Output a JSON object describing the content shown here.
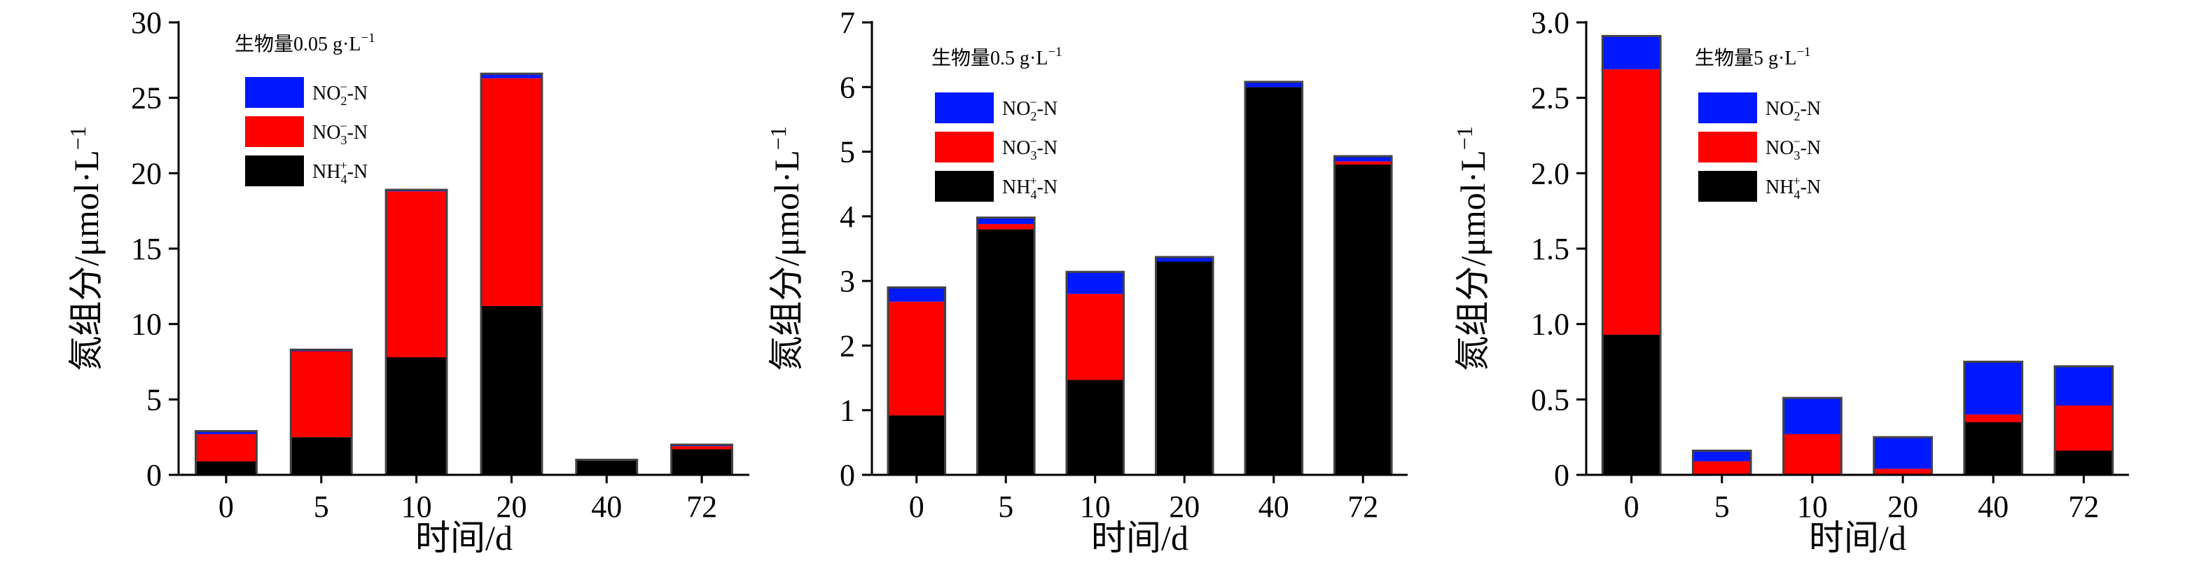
{
  "colors": {
    "NO2": "#0018ff",
    "NO3": "#ff0000",
    "NH4": "#000000"
  },
  "legend": [
    {
      "key": "NO2",
      "pre": "NO",
      "sub": "2",
      "sup": "−",
      "post": "-N"
    },
    {
      "key": "NO3",
      "pre": "NO",
      "sub": "3",
      "sup": "−",
      "post": "-N"
    },
    {
      "key": "NH4",
      "pre": "NH",
      "sub": "4",
      "sup": "+",
      "post": "-N"
    }
  ],
  "axis": {
    "xlabel": "时间/d",
    "ylabel": "氮组分/μmol·L",
    "ylabel_sup": "−1"
  },
  "chart_data": [
    {
      "type": "bar",
      "title": "生物量0.05 g·L",
      "title_sup": "−1",
      "categories": [
        "0",
        "5",
        "10",
        "20",
        "40",
        "72"
      ],
      "ylim": [
        0,
        30
      ],
      "yticks": [
        "0",
        "5",
        "10",
        "15",
        "20",
        "25",
        "30"
      ],
      "ytick_values": [
        0,
        5,
        10,
        15,
        20,
        25,
        30
      ],
      "series": [
        {
          "name": "NH4+-N",
          "key": "NH4",
          "values": [
            0.9,
            2.5,
            7.8,
            11.2,
            1.0,
            1.7
          ]
        },
        {
          "name": "NO3−-N",
          "key": "NO3",
          "values": [
            1.8,
            5.7,
            11.0,
            15.1,
            0.0,
            0.2
          ]
        },
        {
          "name": "NO2−-N",
          "key": "NO2",
          "values": [
            0.2,
            0.1,
            0.1,
            0.3,
            0.0,
            0.1
          ]
        }
      ]
    },
    {
      "type": "bar",
      "title": "生物量0.5 g·L",
      "title_sup": "−1",
      "categories": [
        "0",
        "5",
        "10",
        "20",
        "40",
        "72"
      ],
      "ylim": [
        0,
        7
      ],
      "yticks": [
        "0",
        "1",
        "2",
        "3",
        "4",
        "5",
        "6",
        "7"
      ],
      "ytick_values": [
        0,
        1,
        2,
        3,
        4,
        5,
        6,
        7
      ],
      "series": [
        {
          "name": "NH4+-N",
          "key": "NH4",
          "values": [
            0.92,
            3.8,
            1.47,
            3.3,
            6.0,
            4.8
          ]
        },
        {
          "name": "NO3−-N",
          "key": "NO3",
          "values": [
            1.76,
            0.08,
            1.33,
            0.0,
            0.0,
            0.05
          ]
        },
        {
          "name": "NO2−-N",
          "key": "NO2",
          "values": [
            0.22,
            0.1,
            0.34,
            0.07,
            0.08,
            0.08
          ]
        }
      ]
    },
    {
      "type": "bar",
      "title": "生物量5 g·L",
      "title_sup": "−1",
      "categories": [
        "0",
        "5",
        "10",
        "20",
        "40",
        "72"
      ],
      "ylim": [
        0,
        3
      ],
      "yticks": [
        "0",
        "0.5",
        "1.0",
        "1.5",
        "2.0",
        "2.5",
        "3.0"
      ],
      "ytick_values": [
        0,
        0.5,
        1.0,
        1.5,
        2.0,
        2.5,
        3.0
      ],
      "series": [
        {
          "name": "NH4+-N",
          "key": "NH4",
          "values": [
            0.93,
            0.0,
            0.0,
            0.0,
            0.35,
            0.16
          ]
        },
        {
          "name": "NO3−-N",
          "key": "NO3",
          "values": [
            1.76,
            0.09,
            0.27,
            0.04,
            0.05,
            0.3
          ]
        },
        {
          "name": "NO2−-N",
          "key": "NO2",
          "values": [
            0.22,
            0.07,
            0.24,
            0.21,
            0.35,
            0.26
          ]
        }
      ]
    }
  ]
}
